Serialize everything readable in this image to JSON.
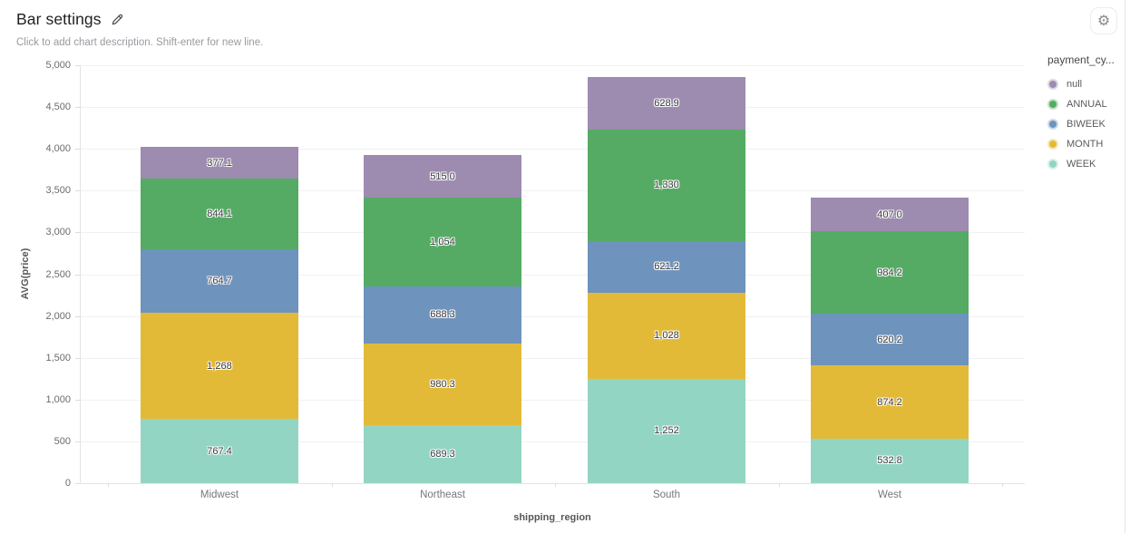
{
  "header": {
    "title": "Bar settings",
    "description": "Click to add chart description. Shift-enter for new line.",
    "settings_icon": "⚙"
  },
  "chart_data": {
    "type": "bar",
    "stacked": true,
    "title": "Bar settings",
    "xlabel": "shipping_region",
    "ylabel": "AVG(price)",
    "ylim": [
      0,
      5000
    ],
    "grid": true,
    "y_ticks": [
      {
        "value": 0,
        "label": "0"
      },
      {
        "value": 500,
        "label": "500"
      },
      {
        "value": 1000,
        "label": "1,000"
      },
      {
        "value": 1500,
        "label": "1,500"
      },
      {
        "value": 2000,
        "label": "2,000"
      },
      {
        "value": 2500,
        "label": "2,500"
      },
      {
        "value": 3000,
        "label": "3,000"
      },
      {
        "value": 3500,
        "label": "3,500"
      },
      {
        "value": 4000,
        "label": "4,000"
      },
      {
        "value": 4500,
        "label": "4,500"
      },
      {
        "value": 5000,
        "label": "5,000"
      }
    ],
    "categories": [
      "Midwest",
      "Northeast",
      "South",
      "West"
    ],
    "series": [
      {
        "name": "WEEK",
        "color": "#93d5c3",
        "values": [
          767.4,
          689.3,
          1252,
          532.8
        ],
        "labels": [
          "767.4",
          "689.3",
          "1,252",
          "532.8"
        ]
      },
      {
        "name": "MONTH",
        "color": "#e3ba37",
        "values": [
          1268,
          980.3,
          1028,
          874.2
        ],
        "labels": [
          "1,268",
          "980.3",
          "1,028",
          "874.2"
        ]
      },
      {
        "name": "BIWEEK",
        "color": "#6e93bd",
        "values": [
          764.7,
          688.3,
          621.2,
          620.2
        ],
        "labels": [
          "764.7",
          "688.3",
          "621.2",
          "620.2"
        ]
      },
      {
        "name": "ANNUAL",
        "color": "#55ab64",
        "values": [
          844.1,
          1054,
          1330,
          984.2
        ],
        "labels": [
          "844.1",
          "1,054",
          "1,330",
          "984.2"
        ]
      },
      {
        "name": "null",
        "color": "#9d8bb0",
        "values": [
          377.1,
          515.0,
          628.9,
          407.0
        ],
        "labels": [
          "377.1",
          "515.0",
          "628.9",
          "407.0"
        ]
      }
    ],
    "legend": {
      "title": "payment_cy...",
      "position": "right",
      "items": [
        {
          "label": "null",
          "color": "#9d8bb0"
        },
        {
          "label": "ANNUAL",
          "color": "#55ab64"
        },
        {
          "label": "BIWEEK",
          "color": "#6e93bd"
        },
        {
          "label": "MONTH",
          "color": "#e3ba37"
        },
        {
          "label": "WEEK",
          "color": "#93d5c3"
        }
      ]
    }
  }
}
